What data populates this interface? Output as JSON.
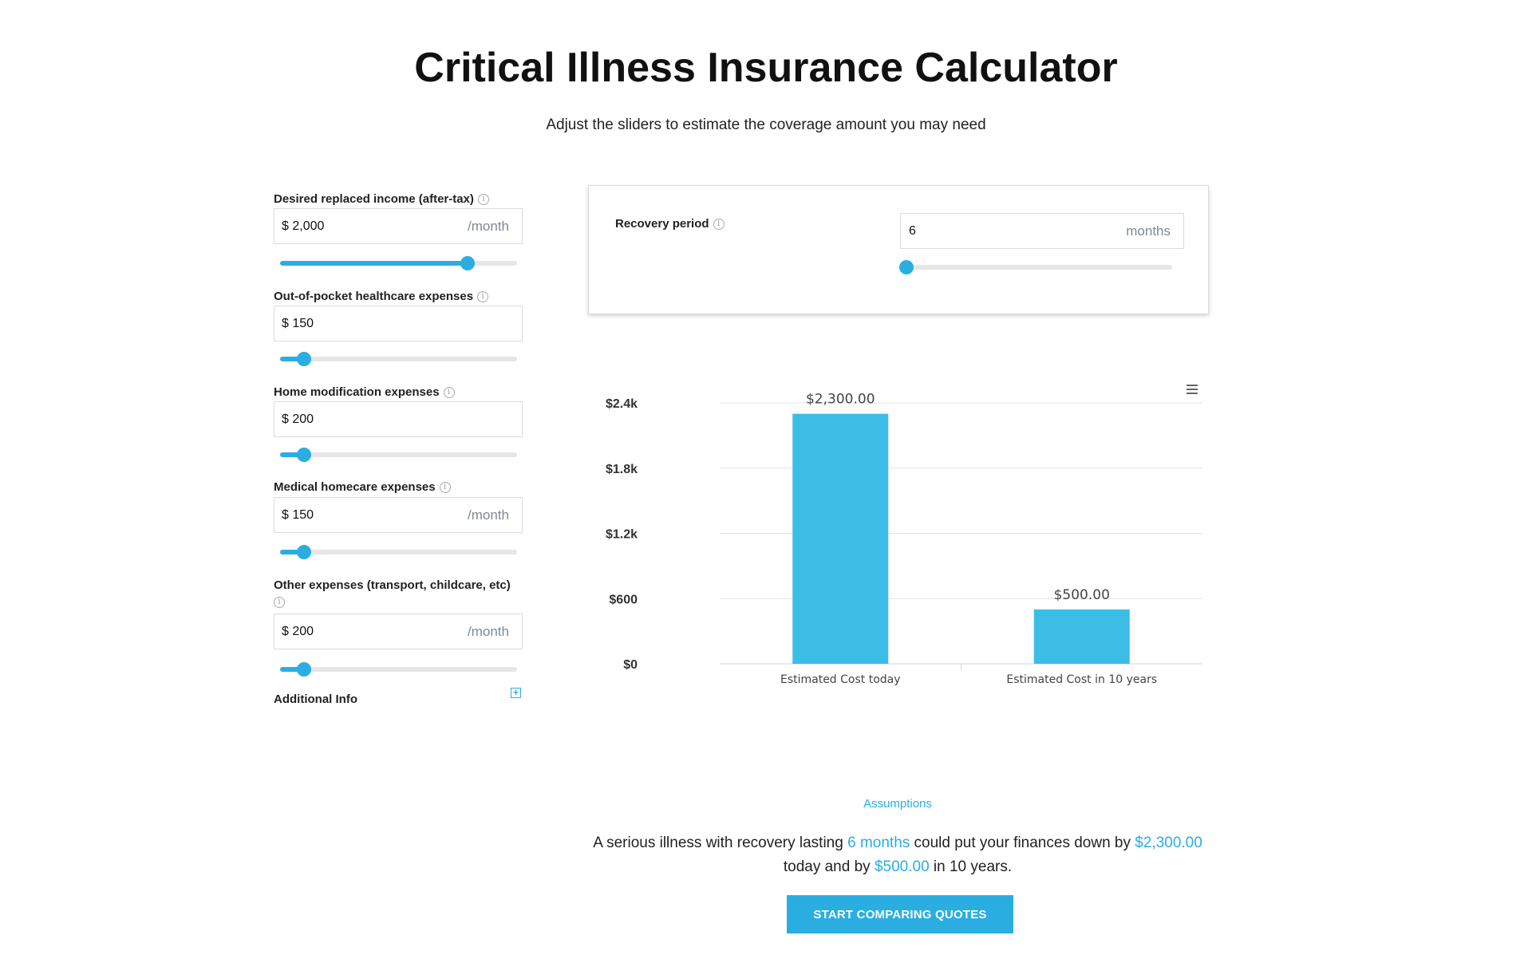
{
  "header": {
    "title": "Critical Illness Insurance Calculator",
    "subtitle": "Adjust the sliders to estimate the coverage amount you may need"
  },
  "fields": [
    {
      "label": "Desired replaced income (after-tax)",
      "value": "$ 2,000",
      "unit": "/month",
      "slider_fraction": 0.79
    },
    {
      "label": "Out-of-pocket healthcare expenses",
      "value": "$ 150",
      "unit": "",
      "slider_fraction": 0.1
    },
    {
      "label": "Home modification expenses",
      "value": "$ 200",
      "unit": "",
      "slider_fraction": 0.1
    },
    {
      "label": "Medical homecare expenses",
      "value": "$ 150",
      "unit": "/month",
      "slider_fraction": 0.1
    },
    {
      "label": "Other expenses (transport, childcare, etc)",
      "value": "$ 200",
      "unit": "/month",
      "slider_fraction": 0.1
    }
  ],
  "additional_info": {
    "label": "Additional Info",
    "toggle": "+"
  },
  "recovery": {
    "label": "Recovery period",
    "value": "6",
    "unit": "months",
    "slider_fraction": 0.0
  },
  "chart_data": {
    "type": "bar",
    "categories": [
      "Estimated Cost today",
      "Estimated Cost in 10 years"
    ],
    "values": [
      2300,
      500
    ],
    "data_labels": [
      "$2,300.00",
      "$500.00"
    ],
    "yticks": [
      "$0",
      "$600",
      "$1.2k",
      "$1.8k",
      "$2.4k"
    ],
    "ylim": [
      0,
      2400
    ],
    "grid": true,
    "color": "#3bbde6"
  },
  "assumptions_link": "Assumptions",
  "summary": {
    "part1": "A serious illness with recovery lasting ",
    "months": "6 months",
    "part2": " could put your finances down by ",
    "today": "$2,300.00",
    "part3": " today and by ",
    "future": "$500.00",
    "part4": " in 10 years."
  },
  "cta_label": "START COMPARING QUOTES",
  "colors": {
    "accent": "#2aaee2"
  }
}
